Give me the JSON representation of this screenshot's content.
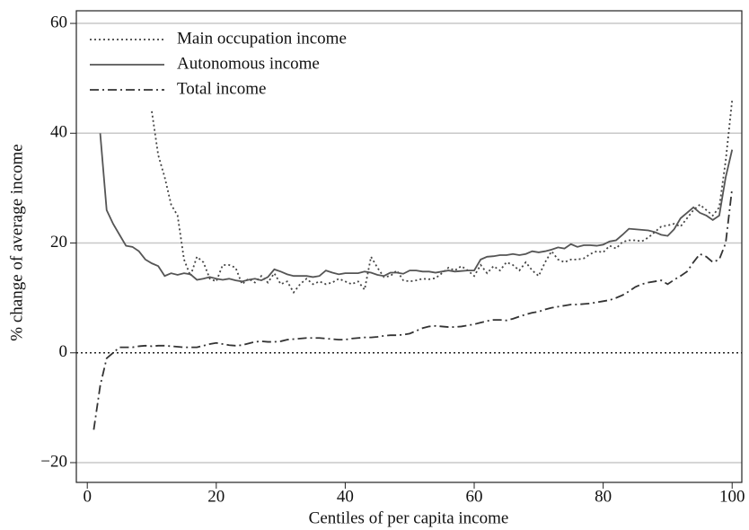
{
  "chart_data": {
    "type": "line",
    "x_label": "Centiles of per capita income",
    "y_label": "% change of average income",
    "x": [
      1,
      2,
      3,
      4,
      5,
      6,
      7,
      8,
      9,
      10,
      11,
      12,
      13,
      14,
      15,
      16,
      17,
      18,
      19,
      20,
      21,
      22,
      23,
      24,
      25,
      26,
      27,
      28,
      29,
      30,
      31,
      32,
      33,
      34,
      35,
      36,
      37,
      38,
      39,
      40,
      41,
      42,
      43,
      44,
      45,
      46,
      47,
      48,
      49,
      50,
      51,
      52,
      53,
      54,
      55,
      56,
      57,
      58,
      59,
      60,
      61,
      62,
      63,
      64,
      65,
      66,
      67,
      68,
      69,
      70,
      71,
      72,
      73,
      74,
      75,
      76,
      77,
      78,
      79,
      80,
      81,
      82,
      83,
      84,
      85,
      86,
      87,
      88,
      89,
      90,
      91,
      92,
      93,
      94,
      95,
      96,
      97,
      98,
      99,
      100
    ],
    "series": [
      {
        "name": "Main occupation income",
        "color": "#444444",
        "style": "dotted",
        "values": [
          null,
          null,
          null,
          null,
          null,
          null,
          null,
          null,
          null,
          44,
          36,
          32,
          27,
          25,
          17,
          14,
          17.5,
          16.5,
          13.5,
          13,
          16,
          16,
          15.5,
          12.5,
          13.5,
          12.8,
          14,
          12.8,
          14.5,
          12.5,
          13,
          11,
          12.5,
          13.5,
          12.5,
          13,
          12.5,
          12.8,
          13.5,
          13,
          12.5,
          13,
          11.5,
          17.5,
          15.5,
          13.8,
          14,
          15,
          13.2,
          13,
          13.2,
          13.5,
          13.4,
          13.6,
          14.5,
          15.5,
          15,
          15.8,
          15,
          14,
          16,
          14.5,
          15.8,
          15,
          16.5,
          16,
          15,
          16.5,
          15,
          14,
          16.5,
          18.5,
          17,
          16.5,
          17,
          17,
          17.2,
          18,
          18.5,
          18.3,
          19.5,
          19,
          20.2,
          20.5,
          20.5,
          20.3,
          21,
          22,
          23,
          23.2,
          23.5,
          23,
          24.5,
          26,
          27,
          26,
          25,
          26.5,
          35,
          46
        ]
      },
      {
        "name": "Autonomous income",
        "color": "#555555",
        "style": "solid",
        "values": [
          null,
          40,
          26,
          23.5,
          21.5,
          19.5,
          19.3,
          18.5,
          17,
          16.3,
          15.8,
          14,
          14.5,
          14.2,
          14.5,
          14.3,
          13.3,
          13.5,
          13.8,
          13.5,
          13.3,
          13.5,
          13.2,
          13,
          13.3,
          13.5,
          13.2,
          13.8,
          15.2,
          14.8,
          14.3,
          14,
          14,
          14,
          13.8,
          14,
          15,
          14.6,
          14.3,
          14.5,
          14.5,
          14.5,
          14.8,
          14.6,
          14.2,
          14,
          14.6,
          14.6,
          14.4,
          15,
          15,
          14.8,
          14.8,
          14.6,
          14.8,
          15,
          14.8,
          14.9,
          15,
          15,
          17,
          17.5,
          17.6,
          17.8,
          17.8,
          18,
          17.8,
          18,
          18.5,
          18.3,
          18.5,
          18.8,
          19.2,
          19,
          19.8,
          19.3,
          19.6,
          19.6,
          19.5,
          19.7,
          20.3,
          20.5,
          21.5,
          22.6,
          22.5,
          22.4,
          22.3,
          22,
          21.5,
          21.3,
          22.5,
          24.5,
          25.5,
          26.5,
          25.5,
          25,
          24.2,
          25,
          32,
          37
        ]
      },
      {
        "name": "Total income",
        "color": "#333333",
        "style": "dashdot",
        "values": [
          -14,
          -6,
          -1,
          0,
          1,
          1,
          1,
          1.2,
          1.3,
          1.2,
          1.3,
          1.3,
          1.2,
          1.1,
          1,
          1,
          1,
          1.3,
          1.6,
          1.8,
          1.6,
          1.4,
          1.3,
          1.4,
          1.7,
          2,
          2.1,
          2,
          2,
          2.1,
          2.4,
          2.5,
          2.6,
          2.7,
          2.7,
          2.7,
          2.6,
          2.5,
          2.4,
          2.4,
          2.6,
          2.7,
          2.8,
          2.8,
          2.9,
          3.1,
          3.2,
          3.2,
          3.3,
          3.5,
          4,
          4.5,
          4.8,
          4.9,
          4.8,
          4.7,
          4.7,
          4.8,
          5,
          5.2,
          5.5,
          5.8,
          6,
          6,
          5.9,
          6.2,
          6.6,
          7,
          7.3,
          7.5,
          7.9,
          8.2,
          8.4,
          8.6,
          8.8,
          8.8,
          8.9,
          9,
          9.2,
          9.4,
          9.6,
          10,
          10.5,
          11.2,
          12,
          12.5,
          12.8,
          13,
          13.2,
          12.5,
          13.3,
          14,
          14.8,
          16.5,
          18,
          17.5,
          16.5,
          17,
          20,
          30
        ]
      }
    ],
    "xlim": [
      -1.7,
      101.5
    ],
    "ylim": [
      -23.6,
      62.3
    ],
    "xticks": [
      0,
      20,
      40,
      60,
      80,
      100
    ],
    "yticks": [
      {
        "value": -20,
        "label": "−20"
      },
      0,
      20,
      40,
      60
    ],
    "grid": true,
    "legend": "upper-left"
  }
}
